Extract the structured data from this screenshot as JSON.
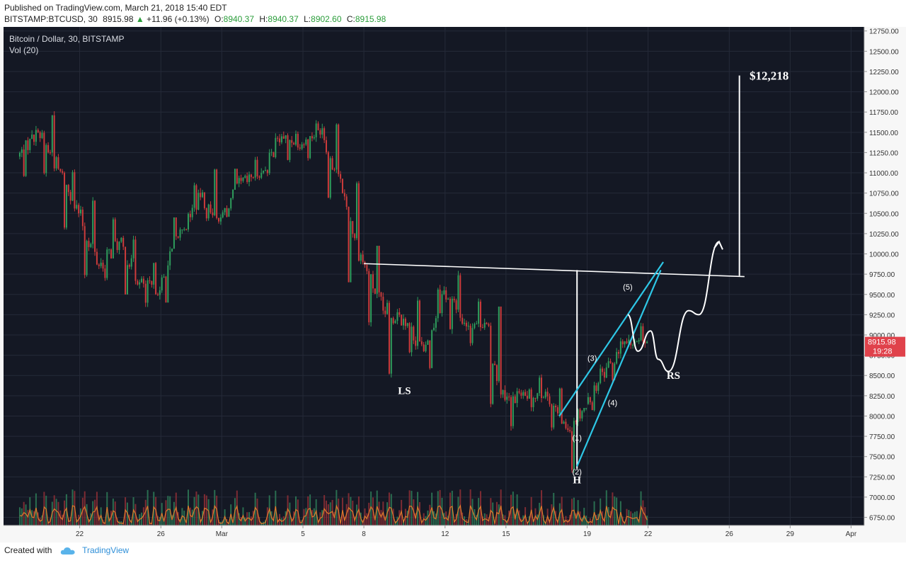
{
  "header": {
    "published": "Published on TradingView.com, March 21, 2018 15:40 EDT",
    "symbol": "BITSTAMP:BTCUSD, 30",
    "last": "8915.98",
    "up_arrow": "▲",
    "change": "+11.96 (+0.13%)",
    "open_label": "O:",
    "open": "8940.37",
    "high_label": "H:",
    "high": "8940.37",
    "low_label": "L:",
    "low": "8902.60",
    "close_label": "C:",
    "close": "8915.98"
  },
  "legend": {
    "title": "Bitcoin / Dollar, 30, BITSTAMP",
    "volume": "Vol (20)"
  },
  "footer": {
    "created_with": "Created with",
    "brand": "TradingView"
  },
  "colors": {
    "background": "#141824",
    "grid": "#252a38",
    "up": "#2e9d5c",
    "down": "#cc3b3b",
    "cyan": "#2ec7e6",
    "annotation": "#ffffff",
    "price_badge": "#e0424b",
    "vol_ma": "#e07b2c"
  },
  "chart_data": {
    "type": "candlestick",
    "series": [
      {
        "name": "",
        "ohlc_daily": [
          {
            "date": "2018-02-19",
            "open": 11200,
            "high": 11600,
            "low": 10950,
            "close": 11500
          },
          {
            "date": "2018-02-20",
            "open": 11500,
            "high": 11800,
            "low": 10900,
            "close": 11050
          },
          {
            "date": "2018-02-21",
            "open": 11050,
            "high": 11200,
            "low": 10300,
            "close": 10500
          },
          {
            "date": "2018-02-22",
            "open": 10500,
            "high": 10700,
            "low": 9700,
            "close": 9850
          },
          {
            "date": "2018-02-23",
            "open": 9850,
            "high": 10450,
            "low": 9600,
            "close": 10150
          },
          {
            "date": "2018-02-24",
            "open": 10150,
            "high": 10300,
            "low": 9500,
            "close": 9650
          },
          {
            "date": "2018-02-25",
            "open": 9650,
            "high": 9900,
            "low": 9300,
            "close": 9550
          },
          {
            "date": "2018-02-26",
            "open": 9550,
            "high": 10450,
            "low": 9400,
            "close": 10300
          },
          {
            "date": "2018-02-27",
            "open": 10300,
            "high": 10900,
            "low": 10150,
            "close": 10700
          },
          {
            "date": "2018-02-28",
            "open": 10700,
            "high": 11050,
            "low": 10300,
            "close": 10450
          },
          {
            "date": "2018-03-01",
            "open": 10450,
            "high": 11050,
            "low": 10350,
            "close": 10900
          },
          {
            "date": "2018-03-02",
            "open": 10900,
            "high": 11200,
            "low": 10800,
            "close": 11000
          },
          {
            "date": "2018-03-03",
            "open": 11000,
            "high": 11550,
            "low": 10900,
            "close": 11450
          },
          {
            "date": "2018-03-04",
            "open": 11450,
            "high": 11550,
            "low": 11050,
            "close": 11350
          },
          {
            "date": "2018-03-05",
            "open": 11350,
            "high": 11650,
            "low": 11150,
            "close": 11550
          },
          {
            "date": "2018-03-06",
            "open": 11550,
            "high": 11700,
            "low": 10600,
            "close": 10750
          },
          {
            "date": "2018-03-07",
            "open": 10750,
            "high": 10900,
            "low": 9650,
            "close": 9900
          },
          {
            "date": "2018-03-08",
            "open": 9900,
            "high": 10100,
            "low": 9100,
            "close": 9300
          },
          {
            "date": "2018-03-09",
            "open": 9300,
            "high": 9450,
            "low": 8400,
            "close": 9200
          },
          {
            "date": "2018-03-10",
            "open": 9200,
            "high": 9500,
            "low": 8700,
            "close": 8800
          },
          {
            "date": "2018-03-11",
            "open": 8800,
            "high": 9700,
            "low": 8450,
            "close": 9550
          },
          {
            "date": "2018-03-12",
            "open": 9550,
            "high": 9880,
            "low": 8950,
            "close": 9150
          },
          {
            "date": "2018-03-13",
            "open": 9150,
            "high": 9450,
            "low": 8850,
            "close": 9150
          },
          {
            "date": "2018-03-14",
            "open": 9150,
            "high": 9350,
            "low": 8000,
            "close": 8200
          },
          {
            "date": "2018-03-15",
            "open": 8200,
            "high": 8400,
            "low": 7750,
            "close": 8250
          },
          {
            "date": "2018-03-16",
            "open": 8250,
            "high": 8600,
            "low": 7950,
            "close": 8300
          },
          {
            "date": "2018-03-17",
            "open": 8300,
            "high": 8350,
            "low": 7800,
            "close": 7850
          },
          {
            "date": "2018-03-18",
            "open": 7850,
            "high": 8100,
            "low": 7300,
            "close": 8150
          },
          {
            "date": "2018-03-19",
            "open": 8150,
            "high": 8700,
            "low": 8050,
            "close": 8600
          },
          {
            "date": "2018-03-20",
            "open": 8600,
            "high": 9000,
            "low": 8300,
            "close": 8900
          },
          {
            "date": "2018-03-21",
            "open": 8900,
            "high": 9150,
            "low": 8800,
            "close": 8916
          }
        ]
      }
    ],
    "x_range": [
      "2018-02-19",
      "2018-04-02"
    ],
    "x_ticks": [
      {
        "date": "2018-02-22",
        "label": "22"
      },
      {
        "date": "2018-02-26",
        "label": "26"
      },
      {
        "date": "2018-03-01",
        "label": "Mar"
      },
      {
        "date": "2018-03-05",
        "label": "5"
      },
      {
        "date": "2018-03-08",
        "label": "8"
      },
      {
        "date": "2018-03-12",
        "label": "12"
      },
      {
        "date": "2018-03-15",
        "label": "15"
      },
      {
        "date": "2018-03-19",
        "label": "19"
      },
      {
        "date": "2018-03-22",
        "label": "22"
      },
      {
        "date": "2018-03-26",
        "label": "26"
      },
      {
        "date": "2018-03-29",
        "label": "29"
      },
      {
        "date": "2018-04-01",
        "label": "Apr"
      }
    ],
    "y_range": [
      6650,
      12800
    ],
    "y_ticks": [
      6750,
      7000,
      7250,
      7500,
      7750,
      8000,
      8250,
      8500,
      8750,
      9000,
      9250,
      9500,
      9750,
      10000,
      10250,
      10500,
      10750,
      11000,
      11250,
      11500,
      11750,
      12000,
      12250,
      12500,
      12750
    ],
    "y_tick_labels": [
      "6750.00",
      "7000.00",
      "7250.00",
      "7500.00",
      "7750.00",
      "8000.00",
      "8250.00",
      "8500.00",
      "8750.00",
      "9000.00",
      "9250.00",
      "9500.00",
      "9750.00",
      "10000.00",
      "10250.00",
      "10500.00",
      "10750.00",
      "11000.00",
      "11250.00",
      "11500.00",
      "11750.00",
      "12000.00",
      "12250.00",
      "12500.00",
      "12750.00"
    ],
    "last_price": {
      "value": 8915.98,
      "label": "8915.98",
      "countdown": "19:28"
    },
    "volume_panel": true,
    "grid": true,
    "annotations": {
      "labels": [
        {
          "text": "LS",
          "date": "2018-03-10",
          "price": 8270
        },
        {
          "text": "H",
          "date": "2018-03-18 12:00",
          "price": 7170
        },
        {
          "text": "RS",
          "date": "2018-03-23 06:00",
          "price": 8460
        },
        {
          "text": "$12,218",
          "date": "2018-03-27 00:00",
          "price": 12150
        },
        {
          "text": "(1)",
          "date": "2018-03-18 12:00",
          "price": 7700
        },
        {
          "text": "(2)",
          "date": "2018-03-18 12:00",
          "price": 7280
        },
        {
          "text": "(3)",
          "date": "2018-03-19 06:00",
          "price": 8680
        },
        {
          "text": "(4)",
          "date": "2018-03-20 06:00",
          "price": 8130
        },
        {
          "text": "(5)",
          "date": "2018-03-21 00:00",
          "price": 9560
        }
      ],
      "neckline": [
        {
          "date": "2018-03-08",
          "price": 9880
        },
        {
          "date": "2018-03-26 18:00",
          "price": 9720
        }
      ],
      "target_vertical": [
        {
          "date": "2018-03-26 12:00",
          "price": 9730
        },
        {
          "date": "2018-03-26 12:00",
          "price": 12200
        }
      ],
      "measure_vertical": [
        {
          "date": "2018-03-18 12:00",
          "price": 9800
        },
        {
          "date": "2018-03-18 12:00",
          "price": 7350
        }
      ],
      "wedge_upper": [
        {
          "date": "2018-03-17 15:00",
          "price": 8000
        },
        {
          "date": "2018-03-22 18:00",
          "price": 9900
        }
      ],
      "wedge_lower": [
        {
          "date": "2018-03-18 12:00",
          "price": 7380
        },
        {
          "date": "2018-03-22 15:00",
          "price": 9800
        }
      ],
      "projection_path": [
        {
          "date": "2018-03-21 00:00",
          "price": 9250
        },
        {
          "date": "2018-03-21 12:00",
          "price": 8800
        },
        {
          "date": "2018-03-22 03:00",
          "price": 9050
        },
        {
          "date": "2018-03-22 12:00",
          "price": 8700
        },
        {
          "date": "2018-03-23 00:00",
          "price": 8550
        },
        {
          "date": "2018-03-24 00:00",
          "price": 9300
        },
        {
          "date": "2018-03-24 12:00",
          "price": 9250
        },
        {
          "date": "2018-03-25 12:00",
          "price": 10150
        }
      ]
    }
  }
}
